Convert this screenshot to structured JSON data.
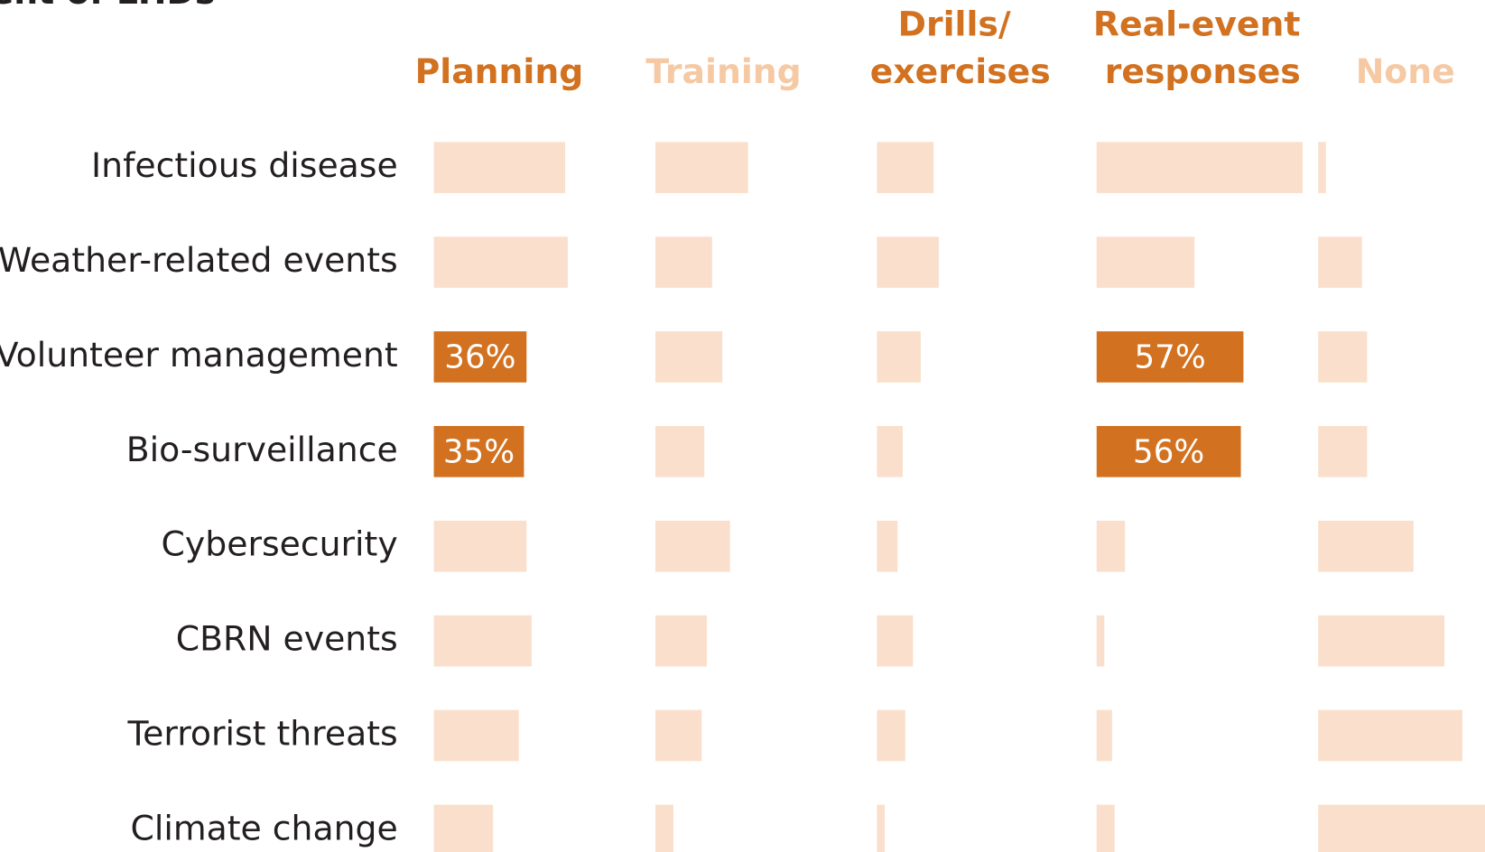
{
  "chart_data": {
    "type": "bar-panels",
    "title": "ent of LHDs",
    "categories": [
      "Infectious disease",
      "Weather-related events",
      "Volunteer management",
      "Bio-surveillance",
      "Cybersecurity",
      "CBRN events",
      "Terrorist threats",
      "Climate change"
    ],
    "xlim": [
      0,
      100
    ],
    "bar_color": "#fae0cc",
    "highlight_color": "#d2711f",
    "series": [
      {
        "name": "Planning",
        "color": "#d2711f",
        "values": [
          51,
          52,
          36,
          35,
          36,
          38,
          33,
          23
        ],
        "value_labels": [
          null,
          null,
          "36%",
          "35%",
          null,
          null,
          null,
          null
        ]
      },
      {
        "name": "Training",
        "color": "#f5c9a3",
        "values": [
          36,
          22,
          26,
          19,
          29,
          20,
          18,
          7
        ]
      },
      {
        "name": "Drills/ exercises",
        "color": "#d2711f",
        "values": [
          22,
          24,
          17,
          10,
          8,
          14,
          11,
          3
        ]
      },
      {
        "name": "Real-event responses",
        "color": "#d2711f",
        "values": [
          80,
          38,
          57,
          56,
          11,
          3,
          6,
          7
        ],
        "value_labels": [
          null,
          null,
          "57%",
          "56%",
          null,
          null,
          null,
          null
        ]
      },
      {
        "name": "None",
        "color": "#f5c9a3",
        "values": [
          3,
          17,
          19,
          19,
          37,
          49,
          56,
          65
        ]
      }
    ]
  }
}
